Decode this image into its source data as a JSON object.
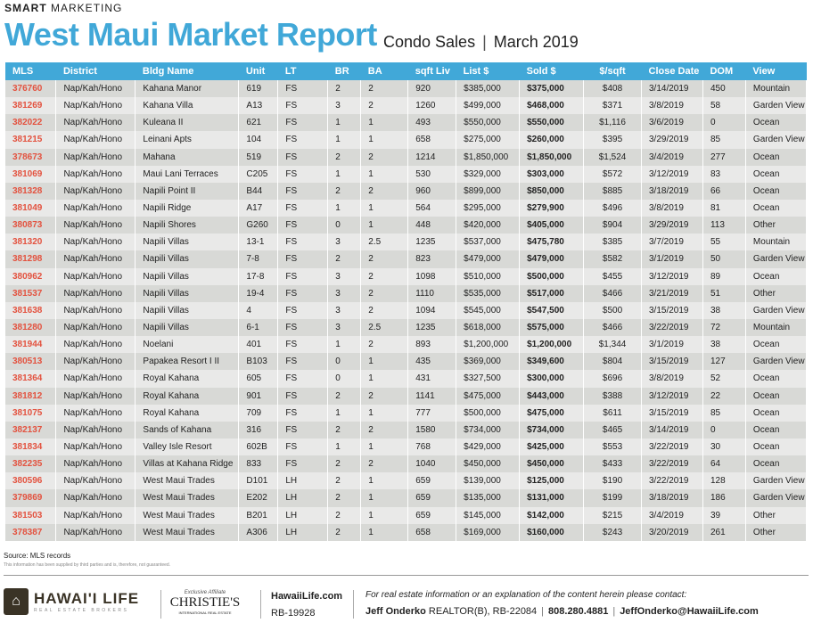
{
  "header": {
    "kicker_bold": "SMART",
    "kicker_rest": "MARKETING",
    "title": "West Maui Market Report",
    "subtitle_a": "Condo Sales",
    "subtitle_sep": "|",
    "subtitle_b": "March 2019"
  },
  "table": {
    "columns": [
      "MLS",
      "District",
      "Bldg Name",
      "Unit",
      "LT",
      "BR",
      "BA",
      "sqft Liv",
      "List $",
      "Sold $",
      "$/sqft",
      "Close Date",
      "DOM",
      "View"
    ],
    "rows": [
      [
        "376760",
        "Nap/Kah/Hono",
        "Kahana Manor",
        "619",
        "FS",
        "2",
        "2",
        "920",
        "$385,000",
        "$375,000",
        "$408",
        "3/14/2019",
        "450",
        "Mountain"
      ],
      [
        "381269",
        "Nap/Kah/Hono",
        "Kahana Villa",
        "A13",
        "FS",
        "3",
        "2",
        "1260",
        "$499,000",
        "$468,000",
        "$371",
        "3/8/2019",
        "58",
        "Garden View"
      ],
      [
        "382022",
        "Nap/Kah/Hono",
        "Kuleana II",
        "621",
        "FS",
        "1",
        "1",
        "493",
        "$550,000",
        "$550,000",
        "$1,116",
        "3/6/2019",
        "0",
        "Ocean"
      ],
      [
        "381215",
        "Nap/Kah/Hono",
        "Leinani Apts",
        "104",
        "FS",
        "1",
        "1",
        "658",
        "$275,000",
        "$260,000",
        "$395",
        "3/29/2019",
        "85",
        "Garden View"
      ],
      [
        "378673",
        "Nap/Kah/Hono",
        "Mahana",
        "519",
        "FS",
        "2",
        "2",
        "1214",
        "$1,850,000",
        "$1,850,000",
        "$1,524",
        "3/4/2019",
        "277",
        "Ocean"
      ],
      [
        "381069",
        "Nap/Kah/Hono",
        "Maui Lani Terraces",
        "C205",
        "FS",
        "1",
        "1",
        "530",
        "$329,000",
        "$303,000",
        "$572",
        "3/12/2019",
        "83",
        "Ocean"
      ],
      [
        "381328",
        "Nap/Kah/Hono",
        "Napili Point II",
        "B44",
        "FS",
        "2",
        "2",
        "960",
        "$899,000",
        "$850,000",
        "$885",
        "3/18/2019",
        "66",
        "Ocean"
      ],
      [
        "381049",
        "Nap/Kah/Hono",
        "Napili Ridge",
        "A17",
        "FS",
        "1",
        "1",
        "564",
        "$295,000",
        "$279,900",
        "$496",
        "3/8/2019",
        "81",
        "Ocean"
      ],
      [
        "380873",
        "Nap/Kah/Hono",
        "Napili Shores",
        "G260",
        "FS",
        "0",
        "1",
        "448",
        "$420,000",
        "$405,000",
        "$904",
        "3/29/2019",
        "113",
        "Other"
      ],
      [
        "381320",
        "Nap/Kah/Hono",
        "Napili Villas",
        "13-1",
        "FS",
        "3",
        "2.5",
        "1235",
        "$537,000",
        "$475,780",
        "$385",
        "3/7/2019",
        "55",
        "Mountain"
      ],
      [
        "381298",
        "Nap/Kah/Hono",
        "Napili Villas",
        "7-8",
        "FS",
        "2",
        "2",
        "823",
        "$479,000",
        "$479,000",
        "$582",
        "3/1/2019",
        "50",
        "Garden View"
      ],
      [
        "380962",
        "Nap/Kah/Hono",
        "Napili Villas",
        "17-8",
        "FS",
        "3",
        "2",
        "1098",
        "$510,000",
        "$500,000",
        "$455",
        "3/12/2019",
        "89",
        "Ocean"
      ],
      [
        "381537",
        "Nap/Kah/Hono",
        "Napili Villas",
        "19-4",
        "FS",
        "3",
        "2",
        "1110",
        "$535,000",
        "$517,000",
        "$466",
        "3/21/2019",
        "51",
        "Other"
      ],
      [
        "381638",
        "Nap/Kah/Hono",
        "Napili Villas",
        "4",
        "FS",
        "3",
        "2",
        "1094",
        "$545,000",
        "$547,500",
        "$500",
        "3/15/2019",
        "38",
        "Garden View"
      ],
      [
        "381280",
        "Nap/Kah/Hono",
        "Napili Villas",
        "6-1",
        "FS",
        "3",
        "2.5",
        "1235",
        "$618,000",
        "$575,000",
        "$466",
        "3/22/2019",
        "72",
        "Mountain"
      ],
      [
        "381944",
        "Nap/Kah/Hono",
        "Noelani",
        "401",
        "FS",
        "1",
        "2",
        "893",
        "$1,200,000",
        "$1,200,000",
        "$1,344",
        "3/1/2019",
        "38",
        "Ocean"
      ],
      [
        "380513",
        "Nap/Kah/Hono",
        "Papakea Resort I II",
        "B103",
        "FS",
        "0",
        "1",
        "435",
        "$369,000",
        "$349,600",
        "$804",
        "3/15/2019",
        "127",
        "Garden View"
      ],
      [
        "381364",
        "Nap/Kah/Hono",
        "Royal Kahana",
        "605",
        "FS",
        "0",
        "1",
        "431",
        "$327,500",
        "$300,000",
        "$696",
        "3/8/2019",
        "52",
        "Ocean"
      ],
      [
        "381812",
        "Nap/Kah/Hono",
        "Royal Kahana",
        "901",
        "FS",
        "2",
        "2",
        "1141",
        "$475,000",
        "$443,000",
        "$388",
        "3/12/2019",
        "22",
        "Ocean"
      ],
      [
        "381075",
        "Nap/Kah/Hono",
        "Royal Kahana",
        "709",
        "FS",
        "1",
        "1",
        "777",
        "$500,000",
        "$475,000",
        "$611",
        "3/15/2019",
        "85",
        "Ocean"
      ],
      [
        "382137",
        "Nap/Kah/Hono",
        "Sands of Kahana",
        "316",
        "FS",
        "2",
        "2",
        "1580",
        "$734,000",
        "$734,000",
        "$465",
        "3/14/2019",
        "0",
        "Ocean"
      ],
      [
        "381834",
        "Nap/Kah/Hono",
        "Valley Isle Resort",
        "602B",
        "FS",
        "1",
        "1",
        "768",
        "$429,000",
        "$425,000",
        "$553",
        "3/22/2019",
        "30",
        "Ocean"
      ],
      [
        "382235",
        "Nap/Kah/Hono",
        "Villas at Kahana Ridge",
        "833",
        "FS",
        "2",
        "2",
        "1040",
        "$450,000",
        "$450,000",
        "$433",
        "3/22/2019",
        "64",
        "Ocean"
      ],
      [
        "380596",
        "Nap/Kah/Hono",
        "West Maui Trades",
        "D101",
        "LH",
        "2",
        "1",
        "659",
        "$139,000",
        "$125,000",
        "$190",
        "3/22/2019",
        "128",
        "Garden View"
      ],
      [
        "379869",
        "Nap/Kah/Hono",
        "West Maui Trades",
        "E202",
        "LH",
        "2",
        "1",
        "659",
        "$135,000",
        "$131,000",
        "$199",
        "3/18/2019",
        "186",
        "Garden View"
      ],
      [
        "381503",
        "Nap/Kah/Hono",
        "West Maui Trades",
        "B201",
        "LH",
        "2",
        "1",
        "659",
        "$145,000",
        "$142,000",
        "$215",
        "3/4/2019",
        "39",
        "Other"
      ],
      [
        "378387",
        "Nap/Kah/Hono",
        "West Maui Trades",
        "A306",
        "LH",
        "2",
        "1",
        "658",
        "$169,000",
        "$160,000",
        "$243",
        "3/20/2019",
        "261",
        "Other"
      ]
    ]
  },
  "footer": {
    "source": "Source: MLS records",
    "disclaimer": "This information has been supplied by third parties and is, therefore, not guaranteed.",
    "brand": "HAWAI'I LIFE",
    "brand_sub": "REAL ESTATE BROKERS",
    "affiliate": "Exclusive Affiliate",
    "christies": "CHRISTIE'S",
    "christies_sub": "INTERNATIONAL REAL ESTATE",
    "site": "HawaiiLife.com",
    "rb": "RB-19928",
    "contact_prompt": "For real estate information or an explanation of the content herein please contact:",
    "agent": "Jeff Onderko",
    "agent_title": "REALTOR(B), RB-22084",
    "sep": "|",
    "phone": "808.280.4881",
    "email": "JeffOnderko@HawaiiLife.com"
  },
  "colors": {
    "accent": "#41a8d8",
    "mls": "#e3523f"
  }
}
